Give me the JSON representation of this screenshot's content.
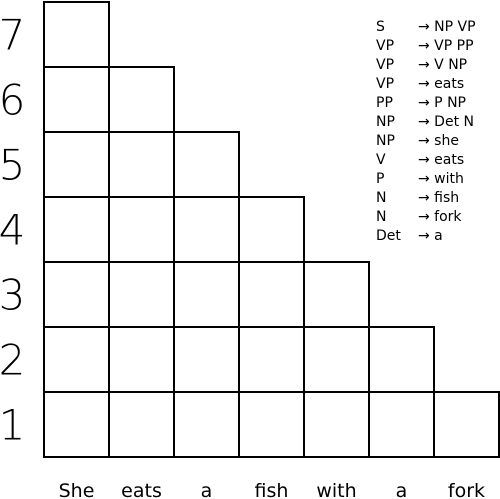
{
  "row_labels": [
    "1",
    "2",
    "3",
    "4",
    "5",
    "6",
    "7"
  ],
  "words": [
    "She",
    "eats",
    "a",
    "fish",
    "with",
    "a",
    "fork"
  ],
  "grammar": [
    {
      "lhs": "S",
      "rhs": "→ NP VP"
    },
    {
      "lhs": "VP",
      "rhs": "→ VP PP"
    },
    {
      "lhs": "VP",
      "rhs": "→ V NP"
    },
    {
      "lhs": "VP",
      "rhs": "→ eats"
    },
    {
      "lhs": "PP",
      "rhs": "→ P NP"
    },
    {
      "lhs": "NP",
      "rhs": "→ Det N"
    },
    {
      "lhs": "NP",
      "rhs": "→ she"
    },
    {
      "lhs": "V",
      "rhs": "→ eats"
    },
    {
      "lhs": "P",
      "rhs": "→ with"
    },
    {
      "lhs": "N",
      "rhs": "→ fish"
    },
    {
      "lhs": "N",
      "rhs": "→ fork"
    },
    {
      "lhs": "Det",
      "rhs": "→ a"
    }
  ],
  "colors": {
    "line": "#000000",
    "background": "#ffffff"
  }
}
